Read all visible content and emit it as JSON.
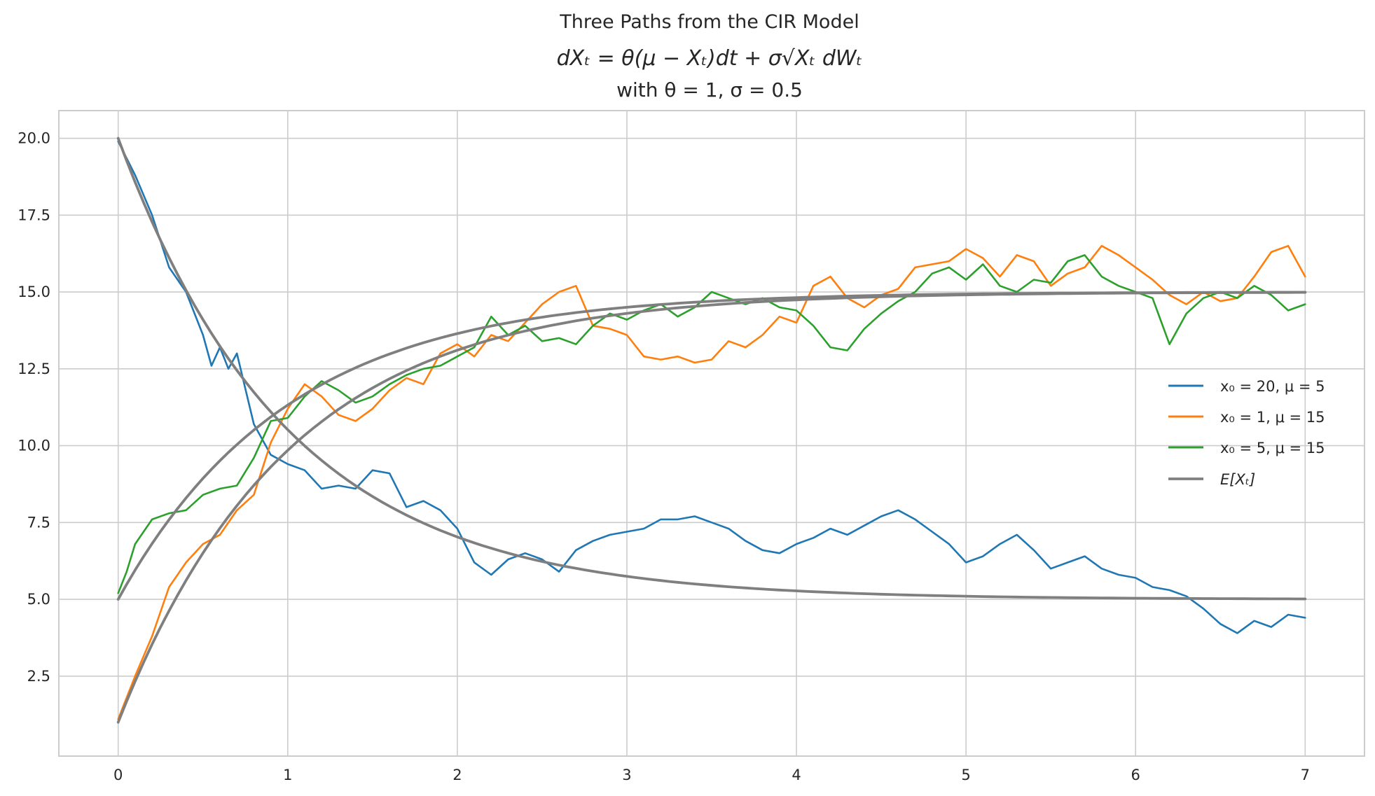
{
  "chart_data": {
    "type": "line",
    "title": "Three Paths from the CIR Model",
    "equation": "dXₜ = θ(μ − Xₜ)dt + σ√Xₜ dWₜ",
    "subtitle": "with θ = 1, σ = 0.5",
    "xlim": [
      -0.35,
      7.35
    ],
    "ylim": [
      -0.1,
      20.9
    ],
    "x_ticks": [
      0,
      1,
      2,
      3,
      4,
      5,
      6,
      7
    ],
    "y_ticks": [
      2.5,
      5.0,
      7.5,
      10.0,
      12.5,
      15.0,
      17.5,
      20.0
    ],
    "y_tick_labels": [
      "2.5",
      "5.0",
      "7.5",
      "10.0",
      "12.5",
      "15.0",
      "17.5",
      "20.0"
    ],
    "grid": true,
    "legend_position": "center-right",
    "theta": 1,
    "sigma": 0.5,
    "series": [
      {
        "name": "x₀ = 20, μ = 5",
        "color": "#1f77b4",
        "x": [
          0,
          0.1,
          0.2,
          0.3,
          0.4,
          0.5,
          0.55,
          0.6,
          0.65,
          0.7,
          0.8,
          0.9,
          1.0,
          1.1,
          1.2,
          1.3,
          1.4,
          1.5,
          1.6,
          1.7,
          1.8,
          1.9,
          2.0,
          2.1,
          2.2,
          2.3,
          2.4,
          2.5,
          2.6,
          2.7,
          2.8,
          2.9,
          3.0,
          3.1,
          3.2,
          3.3,
          3.4,
          3.5,
          3.6,
          3.7,
          3.8,
          3.9,
          4.0,
          4.1,
          4.2,
          4.3,
          4.4,
          4.5,
          4.6,
          4.7,
          4.8,
          4.9,
          5.0,
          5.1,
          5.2,
          5.3,
          5.4,
          5.5,
          5.6,
          5.7,
          5.8,
          5.9,
          6.0,
          6.1,
          6.2,
          6.3,
          6.4,
          6.5,
          6.6,
          6.7,
          6.8,
          6.9,
          7.0
        ],
        "y": [
          19.9,
          18.8,
          17.5,
          15.8,
          15.0,
          13.6,
          12.6,
          13.2,
          12.5,
          13.0,
          10.7,
          9.7,
          9.4,
          9.2,
          8.6,
          8.7,
          8.6,
          9.2,
          9.1,
          8.0,
          8.2,
          7.9,
          7.3,
          6.2,
          5.8,
          6.3,
          6.5,
          6.3,
          5.9,
          6.6,
          6.9,
          7.1,
          7.2,
          7.3,
          7.6,
          7.6,
          7.7,
          7.5,
          7.3,
          6.9,
          6.6,
          6.5,
          6.8,
          7.0,
          7.3,
          7.1,
          7.4,
          7.7,
          7.9,
          7.6,
          7.2,
          6.8,
          6.2,
          6.4,
          6.8,
          7.1,
          6.6,
          6.0,
          6.2,
          6.4,
          6.0,
          5.8,
          5.7,
          5.4,
          5.3,
          5.1,
          4.7,
          4.2,
          3.9,
          4.3,
          4.1,
          4.5,
          4.4
        ]
      },
      {
        "name": "x₀ = 1, μ = 15",
        "color": "#ff7f0e",
        "x": [
          0,
          0.1,
          0.2,
          0.3,
          0.4,
          0.5,
          0.6,
          0.7,
          0.8,
          0.9,
          1.0,
          1.1,
          1.2,
          1.3,
          1.4,
          1.5,
          1.6,
          1.7,
          1.8,
          1.9,
          2.0,
          2.1,
          2.2,
          2.3,
          2.4,
          2.5,
          2.6,
          2.7,
          2.8,
          2.9,
          3.0,
          3.1,
          3.2,
          3.3,
          3.4,
          3.5,
          3.6,
          3.7,
          3.8,
          3.9,
          4.0,
          4.1,
          4.2,
          4.3,
          4.4,
          4.5,
          4.6,
          4.7,
          4.8,
          4.9,
          5.0,
          5.1,
          5.2,
          5.3,
          5.4,
          5.5,
          5.6,
          5.7,
          5.8,
          5.9,
          6.0,
          6.1,
          6.2,
          6.3,
          6.4,
          6.5,
          6.6,
          6.7,
          6.8,
          6.9,
          7.0
        ],
        "y": [
          1.1,
          2.5,
          3.8,
          5.4,
          6.2,
          6.8,
          7.1,
          7.9,
          8.4,
          10.1,
          11.2,
          12.0,
          11.6,
          11.0,
          10.8,
          11.2,
          11.8,
          12.2,
          12.0,
          13.0,
          13.3,
          12.9,
          13.6,
          13.4,
          14.0,
          14.6,
          15.0,
          15.2,
          13.9,
          13.8,
          13.6,
          12.9,
          12.8,
          12.9,
          12.7,
          12.8,
          13.4,
          13.2,
          13.6,
          14.2,
          14.0,
          15.2,
          15.5,
          14.8,
          14.5,
          14.9,
          15.1,
          15.8,
          15.9,
          16.0,
          16.4,
          16.1,
          15.5,
          16.2,
          16.0,
          15.2,
          15.6,
          15.8,
          16.5,
          16.2,
          15.8,
          15.4,
          14.9,
          14.6,
          15.0,
          14.7,
          14.8,
          15.5,
          16.3,
          16.5,
          15.5
        ]
      },
      {
        "name": "x₀ = 5, μ = 15",
        "color": "#2ca02c",
        "x": [
          0,
          0.05,
          0.1,
          0.2,
          0.3,
          0.4,
          0.5,
          0.6,
          0.7,
          0.8,
          0.9,
          1.0,
          1.1,
          1.2,
          1.3,
          1.4,
          1.5,
          1.6,
          1.7,
          1.8,
          1.9,
          2.0,
          2.1,
          2.2,
          2.3,
          2.4,
          2.5,
          2.6,
          2.7,
          2.8,
          2.9,
          3.0,
          3.1,
          3.2,
          3.3,
          3.4,
          3.5,
          3.6,
          3.7,
          3.8,
          3.9,
          4.0,
          4.1,
          4.2,
          4.3,
          4.4,
          4.5,
          4.6,
          4.7,
          4.8,
          4.9,
          5.0,
          5.1,
          5.2,
          5.3,
          5.4,
          5.5,
          5.6,
          5.7,
          5.8,
          5.9,
          6.0,
          6.1,
          6.2,
          6.3,
          6.4,
          6.5,
          6.6,
          6.7,
          6.8,
          6.9,
          7.0
        ],
        "y": [
          5.2,
          5.9,
          6.8,
          7.6,
          7.8,
          7.9,
          8.4,
          8.6,
          8.7,
          9.6,
          10.8,
          10.9,
          11.6,
          12.1,
          11.8,
          11.4,
          11.6,
          12.0,
          12.3,
          12.5,
          12.6,
          12.9,
          13.2,
          14.2,
          13.6,
          13.9,
          13.4,
          13.5,
          13.3,
          13.9,
          14.3,
          14.1,
          14.4,
          14.6,
          14.2,
          14.5,
          15.0,
          14.8,
          14.6,
          14.8,
          14.5,
          14.4,
          13.9,
          13.2,
          13.1,
          13.8,
          14.3,
          14.7,
          15.0,
          15.6,
          15.8,
          15.4,
          15.9,
          15.2,
          15.0,
          15.4,
          15.3,
          16.0,
          16.2,
          15.5,
          15.2,
          15.0,
          14.8,
          13.3,
          14.3,
          14.8,
          15.0,
          14.8,
          15.2,
          14.9,
          14.4,
          14.6
        ]
      }
    ],
    "expected": {
      "name": "E[Xₜ]",
      "color": "#7f7f7f",
      "curves": [
        {
          "x0": 20,
          "mu": 5
        },
        {
          "x0": 1,
          "mu": 15
        },
        {
          "x0": 5,
          "mu": 15
        }
      ]
    }
  }
}
